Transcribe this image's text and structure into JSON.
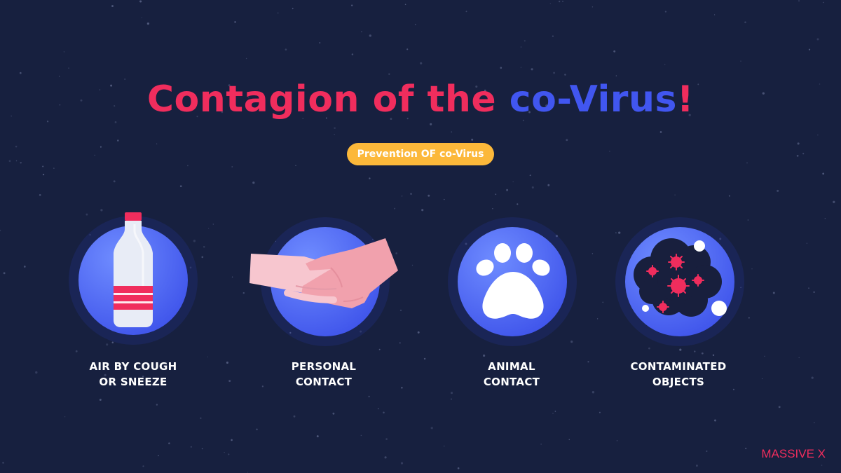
{
  "slide": {
    "title_part1": "Contagion of the ",
    "title_part2": "co-Virus",
    "title_part3": "!",
    "badge": "Prevention OF co-Virus",
    "items": [
      {
        "line1": "AIR BY COUGH",
        "line2": "OR SNEEZE",
        "icon": "water-bottle-icon"
      },
      {
        "line1": "PERSONAL",
        "line2": "CONTACT",
        "icon": "handshake-icon"
      },
      {
        "line1": "ANIMAL",
        "line2": "CONTACT",
        "icon": "paw-icon"
      },
      {
        "line1": "CONTAMINATED",
        "line2": "OBJECTS",
        "icon": "virus-cloud-icon"
      }
    ],
    "brand": "MASSIVE X"
  },
  "colors": {
    "background": "#17203f",
    "accent_red": "#f02d5d",
    "accent_blue": "#4156f0",
    "badge_yellow": "#fcb83a"
  }
}
